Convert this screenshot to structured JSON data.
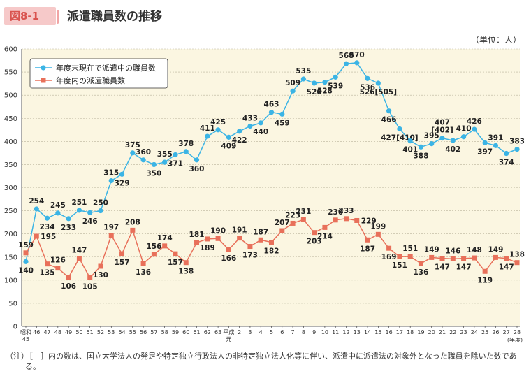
{
  "header": {
    "figure_label": "図8-1",
    "title": "派遣職員数の推移",
    "unit": "（単位：人）"
  },
  "note": {
    "tag": "（注）",
    "text": "［　］内の数は、国立大学法人の発足や特定独立行政法人の非特定独立法人化等に伴い、派遣中に派遣法の対象外となった職員を除いた数である。"
  },
  "chart_data": {
    "type": "line",
    "x": [
      "昭和45",
      "46",
      "47",
      "48",
      "49",
      "50",
      "51",
      "52",
      "53",
      "54",
      "55",
      "56",
      "57",
      "58",
      "59",
      "60",
      "61",
      "62",
      "63",
      "平成元",
      "2",
      "3",
      "4",
      "5",
      "6",
      "7",
      "8",
      "9",
      "10",
      "11",
      "12",
      "13",
      "14",
      "15",
      "16",
      "17",
      "18",
      "19",
      "20",
      "21",
      "22",
      "23",
      "24",
      "25",
      "26",
      "27",
      "28"
    ],
    "x_tick_lines": [
      [
        "昭和",
        "45"
      ],
      [
        "46"
      ],
      [
        "47"
      ],
      [
        "48"
      ],
      [
        "49"
      ],
      [
        "50"
      ],
      [
        "51"
      ],
      [
        "52"
      ],
      [
        "53"
      ],
      [
        "54"
      ],
      [
        "55"
      ],
      [
        "56"
      ],
      [
        "57"
      ],
      [
        "58"
      ],
      [
        "59"
      ],
      [
        "60"
      ],
      [
        "61"
      ],
      [
        "62"
      ],
      [
        "63"
      ],
      [
        "平成",
        "元"
      ],
      [
        "2"
      ],
      [
        "3"
      ],
      [
        "4"
      ],
      [
        "5"
      ],
      [
        "6"
      ],
      [
        "7"
      ],
      [
        "8"
      ],
      [
        "9"
      ],
      [
        "10"
      ],
      [
        "11"
      ],
      [
        "12"
      ],
      [
        "13"
      ],
      [
        "14"
      ],
      [
        "15"
      ],
      [
        "16"
      ],
      [
        "17"
      ],
      [
        "18"
      ],
      [
        "19"
      ],
      [
        "20"
      ],
      [
        "21"
      ],
      [
        "22"
      ],
      [
        "23"
      ],
      [
        "24"
      ],
      [
        "25"
      ],
      [
        "26"
      ],
      [
        "27"
      ],
      [
        "28"
      ]
    ],
    "x_unit": "(年度)",
    "ylim": [
      0,
      600
    ],
    "yticks": [
      0,
      50,
      100,
      150,
      200,
      250,
      300,
      350,
      400,
      450,
      500,
      550,
      600
    ],
    "grid": true,
    "legend_position": "top-left",
    "series": [
      {
        "name": "年度末現在で派遣中の職員数",
        "color": "#3bb4e5",
        "marker": "circle",
        "values": [
          140,
          254,
          234,
          245,
          233,
          251,
          246,
          250,
          315,
          329,
          375,
          360,
          350,
          355,
          371,
          378,
          360,
          411,
          425,
          409,
          422,
          433,
          440,
          463,
          459,
          509,
          535,
          526,
          528,
          539,
          568,
          570,
          536,
          526,
          466,
          427,
          401,
          388,
          395,
          407,
          402,
          410,
          426,
          397,
          391,
          374,
          383
        ],
        "labels": [
          "140",
          "254",
          "234",
          "245",
          "233",
          "251",
          "246",
          "250",
          "315",
          "329",
          "375",
          "360",
          "350",
          "355",
          "371",
          "378",
          "360",
          "411",
          "425",
          "409",
          "422",
          "433",
          "440",
          "463",
          "459",
          "509",
          "535",
          "526",
          "528",
          "539",
          "568",
          "570",
          "536",
          "526[505]",
          "466",
          "427[410]",
          "401",
          "388",
          "395",
          "407\n[402]",
          "402",
          "410",
          "426",
          "397",
          "391",
          "374",
          "383"
        ],
        "label_side": [
          "below",
          "above",
          "below",
          "above",
          "below",
          "above",
          "below",
          "above",
          "above",
          "below",
          "above",
          "above",
          "below",
          "above",
          "below",
          "above",
          "below",
          "above",
          "above",
          "below",
          "below",
          "above",
          "below",
          "above",
          "below",
          "above",
          "above",
          "below",
          "below",
          "below",
          "above",
          "above",
          "below",
          "below",
          "below",
          "below",
          "below",
          "below",
          "above",
          "above",
          "below",
          "above",
          "above",
          "below",
          "above",
          "below",
          "above"
        ]
      },
      {
        "name": "年度内の派遣職員数",
        "color": "#e8705a",
        "marker": "square",
        "values": [
          159,
          195,
          135,
          126,
          106,
          147,
          105,
          130,
          197,
          157,
          208,
          136,
          156,
          174,
          157,
          138,
          181,
          189,
          190,
          166,
          191,
          173,
          187,
          182,
          207,
          223,
          231,
          203,
          214,
          230,
          233,
          229,
          187,
          199,
          169,
          151,
          151,
          136,
          149,
          147,
          146,
          147,
          148,
          119,
          149,
          147,
          138
        ],
        "labels": [
          "159",
          "195",
          "135",
          "126",
          "106",
          "147",
          "105",
          "130",
          "197",
          "157",
          "208",
          "136",
          "156",
          "174",
          "157",
          "138",
          "181",
          "189",
          "190",
          "166",
          "191",
          "173",
          "187",
          "182",
          "207",
          "223",
          "231",
          "203",
          "214",
          "230",
          "233",
          "229",
          "187",
          "199",
          "169",
          "151",
          "151",
          "136",
          "149",
          "147",
          "146",
          "147",
          "148",
          "119",
          "149",
          "147",
          "138"
        ],
        "label_side": [
          "above",
          "right",
          "below",
          "above",
          "below",
          "above",
          "below",
          "below",
          "above",
          "below",
          "above",
          "below",
          "above",
          "above",
          "below",
          "below",
          "above",
          "below",
          "above",
          "below",
          "above",
          "below",
          "above",
          "below",
          "above",
          "above",
          "above",
          "below",
          "below",
          "above",
          "above",
          "right",
          "below",
          "above",
          "below",
          "below",
          "above",
          "below",
          "above",
          "below",
          "above",
          "below",
          "above",
          "below",
          "above",
          "below",
          "above"
        ]
      }
    ]
  }
}
